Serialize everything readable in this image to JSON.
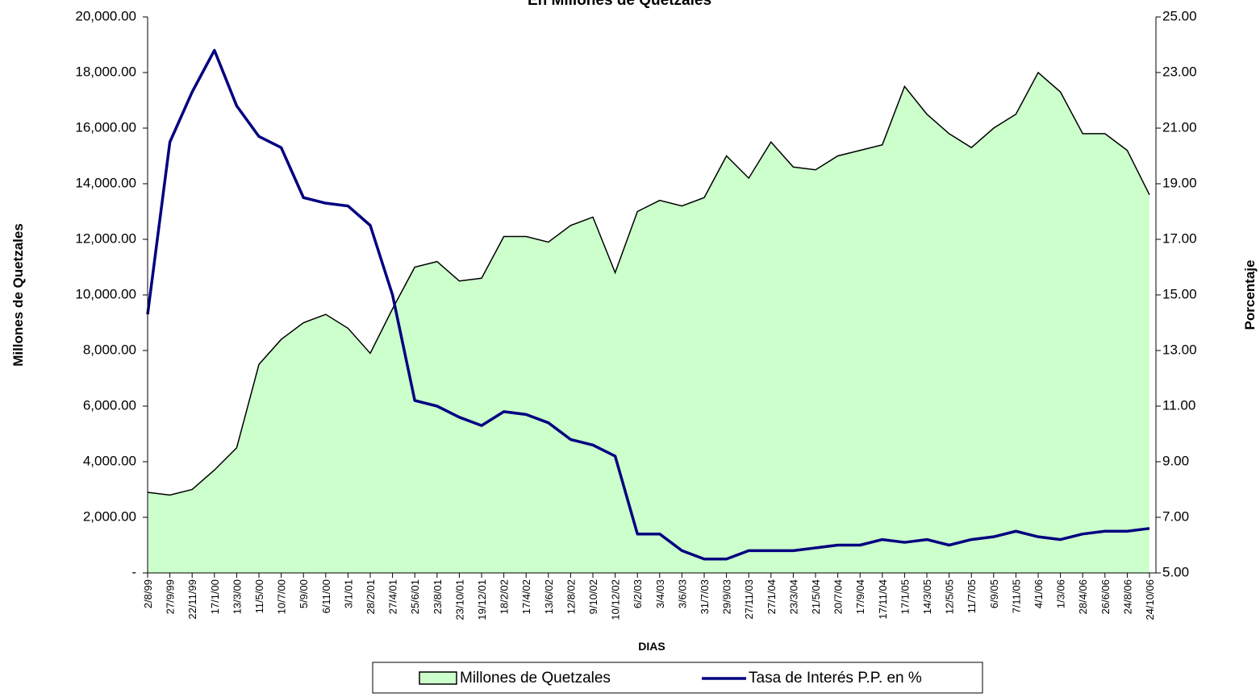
{
  "chart_data": {
    "type": "area-line",
    "title": "En Millones de Quetzales",
    "xlabel": "DIAS",
    "ylabel": "Millones de Quetzales",
    "y2label": "Porcentaje",
    "categories": [
      "2/8/99",
      "27/9/99",
      "22/11/99",
      "17/1/00",
      "13/3/00",
      "11/5/00",
      "10/7/00",
      "5/9/00",
      "6/11/00",
      "3/1/01",
      "28/2/01",
      "27/4/01",
      "25/6/01",
      "23/8/01",
      "23/10/01",
      "19/12/01",
      "18/2/02",
      "17/4/02",
      "13/6/02",
      "12/8/02",
      "9/10/02",
      "10/12/02",
      "6/2/03",
      "3/4/03",
      "3/6/03",
      "31/7/03",
      "29/9/03",
      "27/11/03",
      "27/1/04",
      "23/3/04",
      "21/5/04",
      "20/7/04",
      "17/9/04",
      "17/11/04",
      "17/1/05",
      "14/3/05",
      "12/5/05",
      "11/7/05",
      "6/9/05",
      "7/11/05",
      "4/1/06",
      "1/3/06",
      "28/4/06",
      "26/6/06",
      "24/8/06",
      "24/10/06"
    ],
    "series": [
      {
        "name": "Millones de Quetzales",
        "kind": "area",
        "color": "#ccffcc",
        "values": [
          2900,
          2800,
          3000,
          3700,
          4500,
          7500,
          8400,
          9000,
          9300,
          8800,
          7900,
          9500,
          11000,
          11200,
          10500,
          10600,
          12100,
          12100,
          11900,
          12500,
          12800,
          10800,
          13000,
          13400,
          13200,
          13500,
          15000,
          14200,
          15500,
          14600,
          14500,
          15000,
          15200,
          15400,
          17500,
          16500,
          15800,
          15300,
          16000,
          16500,
          18000,
          17300,
          15800,
          15800,
          15200,
          13600
        ]
      },
      {
        "name": "Tasa de Interés P.P. en %",
        "kind": "line",
        "axis": "y2",
        "color": "#000080",
        "values": [
          14.3,
          20.5,
          22.3,
          23.8,
          21.8,
          20.7,
          20.3,
          18.5,
          18.3,
          18.2,
          17.5,
          15.0,
          11.2,
          11.0,
          10.6,
          10.3,
          10.8,
          10.7,
          10.4,
          9.8,
          9.6,
          9.2,
          6.4,
          6.4,
          5.8,
          5.5,
          5.5,
          5.8,
          5.8,
          5.8,
          5.9,
          6.0,
          6.0,
          6.2,
          6.1,
          6.2,
          6.0,
          6.2,
          6.3,
          6.5,
          6.3,
          6.2,
          6.4,
          6.5,
          6.5,
          6.6
        ]
      }
    ],
    "ylim": [
      0,
      20000
    ],
    "yticks": [
      {
        "value": 0,
        "label": "-"
      },
      {
        "value": 2000,
        "label": "2,000.00"
      },
      {
        "value": 4000,
        "label": "4,000.00"
      },
      {
        "value": 6000,
        "label": "6,000.00"
      },
      {
        "value": 8000,
        "label": "8,000.00"
      },
      {
        "value": 10000,
        "label": "10,000.00"
      },
      {
        "value": 12000,
        "label": "12,000.00"
      },
      {
        "value": 14000,
        "label": "14,000.00"
      },
      {
        "value": 16000,
        "label": "16,000.00"
      },
      {
        "value": 18000,
        "label": "18,000.00"
      },
      {
        "value": 20000,
        "label": "20,000.00"
      }
    ],
    "y2lim": [
      5,
      25
    ],
    "y2ticks": [
      {
        "value": 5,
        "label": "5.00"
      },
      {
        "value": 7,
        "label": "7.00"
      },
      {
        "value": 9,
        "label": "9.00"
      },
      {
        "value": 11,
        "label": "11.00"
      },
      {
        "value": 13,
        "label": "13.00"
      },
      {
        "value": 15,
        "label": "15.00"
      },
      {
        "value": 17,
        "label": "17.00"
      },
      {
        "value": 19,
        "label": "19.00"
      },
      {
        "value": 21,
        "label": "21.00"
      },
      {
        "value": 23,
        "label": "23.00"
      },
      {
        "value": 25,
        "label": "25.00"
      }
    ],
    "legend": "bottom"
  }
}
